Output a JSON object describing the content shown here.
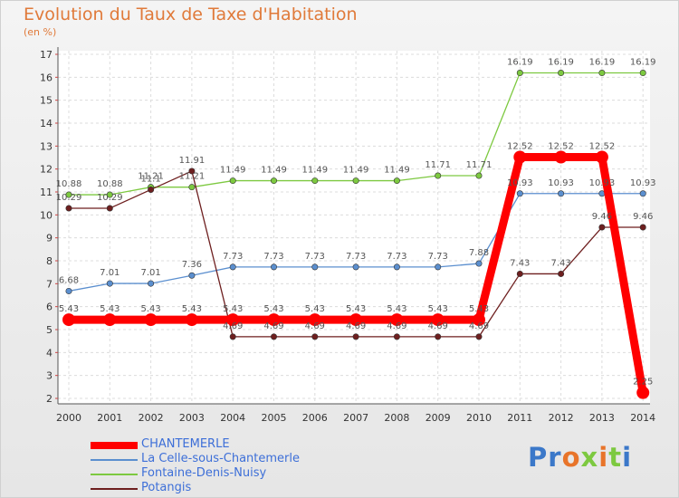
{
  "title": "Evolution du Taux de Taxe d'Habitation",
  "subtitle": "(en %)",
  "logo": "Proxiti",
  "chart_data": {
    "type": "line",
    "x": [
      "2000",
      "2001",
      "2002",
      "2003",
      "2004",
      "2005",
      "2006",
      "2007",
      "2008",
      "2009",
      "2010",
      "2011",
      "2012",
      "2013",
      "2014"
    ],
    "ylim": [
      2,
      17
    ],
    "yticks": [
      2,
      3,
      4,
      5,
      6,
      7,
      8,
      9,
      10,
      11,
      12,
      13,
      14,
      15,
      16,
      17
    ],
    "grid": true,
    "legend_position": "bottom-left",
    "series": [
      {
        "name": "CHANTEMERLE",
        "color": "#ff0000",
        "emphasis": true,
        "values": [
          5.43,
          5.43,
          5.43,
          5.43,
          5.43,
          5.43,
          5.43,
          5.43,
          5.43,
          5.43,
          5.43,
          12.52,
          12.52,
          12.52,
          2.25
        ],
        "labels": [
          "5.43",
          "5.43",
          "5.43",
          "5.43",
          "5.43",
          "5.43",
          "5.43",
          "5.43",
          "5.43",
          "5.43",
          "5.43",
          "12.52",
          "12.52",
          "12.52",
          "2.25"
        ]
      },
      {
        "name": "La Celle-sous-Chantemerle",
        "color": "#5b8fcf",
        "values": [
          6.68,
          7.01,
          7.01,
          7.36,
          7.73,
          7.73,
          7.73,
          7.73,
          7.73,
          7.73,
          7.88,
          10.93,
          10.93,
          10.93,
          10.93
        ],
        "labels": [
          "6.68",
          "7.01",
          "7.01",
          "7.36",
          "7.73",
          "7.73",
          "7.73",
          "7.73",
          "7.73",
          "7.73",
          "7.88",
          "10.93",
          "10.93",
          "10.93",
          "10.93"
        ]
      },
      {
        "name": "Fontaine-Denis-Nuisy",
        "color": "#7dc940",
        "values": [
          10.88,
          10.88,
          11.21,
          11.21,
          11.49,
          11.49,
          11.49,
          11.49,
          11.49,
          11.71,
          11.71,
          16.19,
          16.19,
          16.19,
          16.19
        ],
        "labels": [
          "10.88",
          "10.88",
          "11.21",
          "11.21",
          "11.49",
          "11.49",
          "11.49",
          "11.49",
          "11.49",
          "11.71",
          "11.71",
          "16.19",
          "16.19",
          "16.19",
          "16.19"
        ]
      },
      {
        "name": "Potangis",
        "color": "#6e1f1f",
        "values": [
          10.29,
          10.29,
          11.1,
          11.91,
          4.69,
          4.69,
          4.69,
          4.69,
          4.69,
          4.69,
          4.69,
          7.43,
          7.43,
          9.46,
          9.46
        ],
        "labels": [
          "10.29",
          "10.29",
          "11.1",
          "11.91",
          "4.69",
          "4.69",
          "4.69",
          "4.69",
          "4.69",
          "4.69",
          "4.69",
          "7.43",
          "7.43",
          "9.46",
          "9.46"
        ]
      }
    ]
  }
}
